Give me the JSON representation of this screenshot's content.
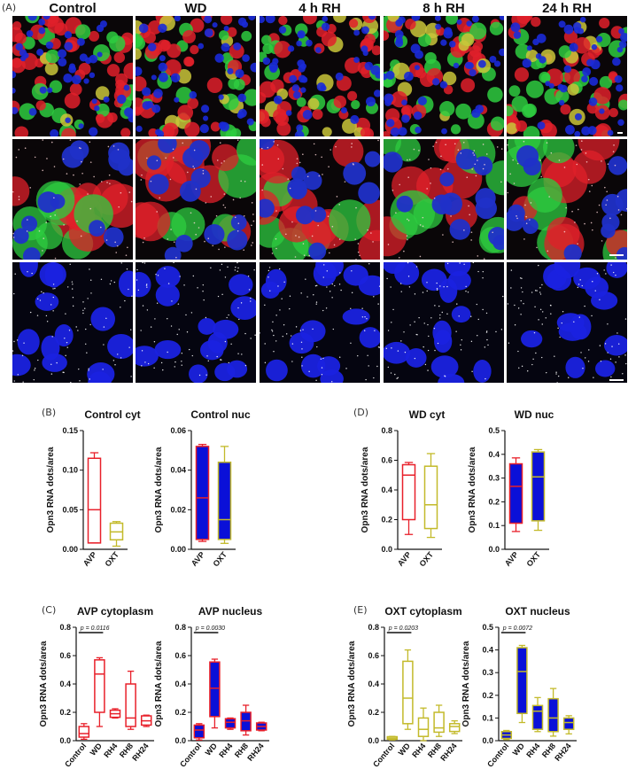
{
  "figure": {
    "panel_A_label": "(A)",
    "columns": [
      "Control",
      "WD",
      "4 h RH",
      "8 h RH",
      "24 h RH"
    ],
    "panel_B_label": "(B)",
    "panel_C_label": "(C)",
    "panel_D_label": "(D)",
    "panel_E_label": "(E)",
    "colors": {
      "avp": "#e8202a",
      "oxt": "#c3ba2a",
      "box_blue": "#0a10d8",
      "red_stain": "#e0202a",
      "green_stain": "#2ecc40",
      "blue_stain": "#1a2ad8"
    }
  },
  "chart_data": [
    {
      "id": "control-cyt",
      "type": "box",
      "title": "Control cyt",
      "ylabel": "Opn3 RNA dots/area",
      "ylim": [
        0,
        0.15
      ],
      "yticks": [
        "0.00",
        "0.05",
        "0.10",
        "0.15"
      ],
      "categories": [
        "AVP",
        "OXT"
      ],
      "boxes": [
        {
          "min": 0.008,
          "q1": 0.008,
          "median": 0.05,
          "q3": 0.115,
          "max": 0.122,
          "color": "#e8202a",
          "fill": "none"
        },
        {
          "min": 0.004,
          "q1": 0.012,
          "median": 0.022,
          "q3": 0.033,
          "max": 0.035,
          "color": "#c3ba2a",
          "fill": "none"
        }
      ]
    },
    {
      "id": "control-nuc",
      "type": "box",
      "title": "Control nuc",
      "ylabel": "Opn3 RNA dots/area",
      "ylim": [
        0,
        0.06
      ],
      "yticks": [
        "0.00",
        "0.02",
        "0.04",
        "0.06"
      ],
      "categories": [
        "AVP",
        "OXT"
      ],
      "boxes": [
        {
          "min": 0.004,
          "q1": 0.005,
          "median": 0.026,
          "q3": 0.052,
          "max": 0.053,
          "color": "#e8202a",
          "fill": "#0a10d8"
        },
        {
          "min": 0.003,
          "q1": 0.005,
          "median": 0.015,
          "q3": 0.044,
          "max": 0.052,
          "color": "#c3ba2a",
          "fill": "#0a10d8"
        }
      ]
    },
    {
      "id": "wd-cyt",
      "type": "box",
      "title": "WD cyt",
      "ylabel": "Opn3 RNA dots/area",
      "ylim": [
        0,
        0.8
      ],
      "yticks": [
        "0.0",
        "0.2",
        "0.4",
        "0.6",
        "0.8"
      ],
      "categories": [
        "AVP",
        "OXT"
      ],
      "boxes": [
        {
          "min": 0.1,
          "q1": 0.2,
          "median": 0.5,
          "q3": 0.57,
          "max": 0.585,
          "color": "#e8202a",
          "fill": "none"
        },
        {
          "min": 0.08,
          "q1": 0.14,
          "median": 0.3,
          "q3": 0.56,
          "max": 0.645,
          "color": "#c3ba2a",
          "fill": "none"
        }
      ]
    },
    {
      "id": "wd-nuc",
      "type": "box",
      "title": "WD nuc",
      "ylabel": "Opn3 RNA dots/area",
      "ylim": [
        0,
        0.5
      ],
      "yticks": [
        "0.0",
        "0.1",
        "0.2",
        "0.3",
        "0.4",
        "0.5"
      ],
      "categories": [
        "AVP",
        "OXT"
      ],
      "boxes": [
        {
          "min": 0.075,
          "q1": 0.11,
          "median": 0.265,
          "q3": 0.36,
          "max": 0.385,
          "color": "#e8202a",
          "fill": "#0a10d8"
        },
        {
          "min": 0.08,
          "q1": 0.12,
          "median": 0.305,
          "q3": 0.41,
          "max": 0.42,
          "color": "#c3ba2a",
          "fill": "#0a10d8"
        }
      ]
    },
    {
      "id": "avp-cytoplasm",
      "type": "box",
      "title": "AVP cytoplasm",
      "ylabel": "Opn3 RNA dots/area",
      "ylim": [
        0,
        0.8
      ],
      "yticks": [
        "0.0",
        "0.2",
        "0.4",
        "0.6",
        "0.8"
      ],
      "categories": [
        "Control",
        "WD",
        "RH4",
        "RH8",
        "RH24"
      ],
      "pvalue": {
        "text": "p = 0.0116",
        "from": 0,
        "to": 1
      },
      "boxes": [
        {
          "min": 0.01,
          "q1": 0.025,
          "median": 0.05,
          "q3": 0.1,
          "max": 0.12,
          "color": "#e8202a",
          "fill": "none"
        },
        {
          "min": 0.1,
          "q1": 0.2,
          "median": 0.47,
          "q3": 0.57,
          "max": 0.585,
          "color": "#e8202a",
          "fill": "none"
        },
        {
          "min": 0.16,
          "q1": 0.165,
          "median": 0.19,
          "q3": 0.215,
          "max": 0.225,
          "color": "#e8202a",
          "fill": "none"
        },
        {
          "min": 0.08,
          "q1": 0.1,
          "median": 0.16,
          "q3": 0.4,
          "max": 0.49,
          "color": "#e8202a",
          "fill": "none"
        },
        {
          "min": 0.1,
          "q1": 0.11,
          "median": 0.14,
          "q3": 0.175,
          "max": 0.18,
          "color": "#e8202a",
          "fill": "none"
        }
      ]
    },
    {
      "id": "avp-nucleus",
      "type": "box",
      "title": "AVP nucleus",
      "ylabel": "Opn3 RNA dots/area",
      "ylim": [
        0,
        0.8
      ],
      "yticks": [
        "0.0",
        "0.2",
        "0.4",
        "0.6",
        "0.8"
      ],
      "categories": [
        "Control",
        "WD",
        "RH4",
        "RH8",
        "RH24"
      ],
      "pvalue": {
        "text": "p = 0.0030",
        "from": 0,
        "to": 1
      },
      "boxes": [
        {
          "min": 0.005,
          "q1": 0.02,
          "median": 0.075,
          "q3": 0.11,
          "max": 0.12,
          "color": "#e8202a",
          "fill": "#0a10d8"
        },
        {
          "min": 0.09,
          "q1": 0.17,
          "median": 0.37,
          "q3": 0.555,
          "max": 0.575,
          "color": "#e8202a",
          "fill": "#0a10d8"
        },
        {
          "min": 0.08,
          "q1": 0.09,
          "median": 0.13,
          "q3": 0.155,
          "max": 0.16,
          "color": "#e8202a",
          "fill": "#0a10d8"
        },
        {
          "min": 0.04,
          "q1": 0.07,
          "median": 0.14,
          "q3": 0.2,
          "max": 0.25,
          "color": "#e8202a",
          "fill": "#0a10d8"
        },
        {
          "min": 0.07,
          "q1": 0.075,
          "median": 0.1,
          "q3": 0.125,
          "max": 0.13,
          "color": "#e8202a",
          "fill": "#0a10d8"
        }
      ]
    },
    {
      "id": "oxt-cytoplasm",
      "type": "box",
      "title": "OXT cytoplasm",
      "ylabel": "Opn3 RNA dots/area",
      "ylim": [
        0,
        0.8
      ],
      "yticks": [
        "0.0",
        "0.2",
        "0.4",
        "0.6",
        "0.8"
      ],
      "categories": [
        "Control",
        "WD",
        "RH4",
        "RH8",
        "RH24"
      ],
      "pvalue": {
        "text": "p = 0.0203",
        "from": 0,
        "to": 1
      },
      "boxes": [
        {
          "min": 0.005,
          "q1": 0.01,
          "median": 0.018,
          "q3": 0.028,
          "max": 0.03,
          "color": "#c3ba2a",
          "fill": "none"
        },
        {
          "min": 0.08,
          "q1": 0.12,
          "median": 0.3,
          "q3": 0.56,
          "max": 0.64,
          "color": "#c3ba2a",
          "fill": "none"
        },
        {
          "min": 0.0,
          "q1": 0.03,
          "median": 0.08,
          "q3": 0.16,
          "max": 0.23,
          "color": "#c3ba2a",
          "fill": "none"
        },
        {
          "min": 0.03,
          "q1": 0.06,
          "median": 0.09,
          "q3": 0.2,
          "max": 0.25,
          "color": "#c3ba2a",
          "fill": "none"
        },
        {
          "min": 0.05,
          "q1": 0.065,
          "median": 0.1,
          "q3": 0.12,
          "max": 0.14,
          "color": "#c3ba2a",
          "fill": "none"
        }
      ]
    },
    {
      "id": "oxt-nucleus",
      "type": "box",
      "title": "OXT nucleus",
      "ylabel": "Opn3 RNA dots/area",
      "ylim": [
        0,
        0.5
      ],
      "yticks": [
        "0.0",
        "0.1",
        "0.2",
        "0.3",
        "0.4",
        "0.5"
      ],
      "categories": [
        "Control",
        "WD",
        "RH4",
        "RH8",
        "RH24"
      ],
      "pvalue": {
        "text": "p = 0.0072",
        "from": 0,
        "to": 1
      },
      "boxes": [
        {
          "min": 0.005,
          "q1": 0.01,
          "median": 0.025,
          "q3": 0.04,
          "max": 0.045,
          "color": "#c3ba2a",
          "fill": "#0a10d8"
        },
        {
          "min": 0.08,
          "q1": 0.12,
          "median": 0.305,
          "q3": 0.41,
          "max": 0.42,
          "color": "#c3ba2a",
          "fill": "#0a10d8"
        },
        {
          "min": 0.04,
          "q1": 0.05,
          "median": 0.13,
          "q3": 0.155,
          "max": 0.19,
          "color": "#c3ba2a",
          "fill": "#0a10d8"
        },
        {
          "min": 0.02,
          "q1": 0.04,
          "median": 0.1,
          "q3": 0.185,
          "max": 0.23,
          "color": "#c3ba2a",
          "fill": "#0a10d8"
        },
        {
          "min": 0.03,
          "q1": 0.05,
          "median": 0.08,
          "q3": 0.1,
          "max": 0.11,
          "color": "#c3ba2a",
          "fill": "#0a10d8"
        }
      ]
    }
  ]
}
